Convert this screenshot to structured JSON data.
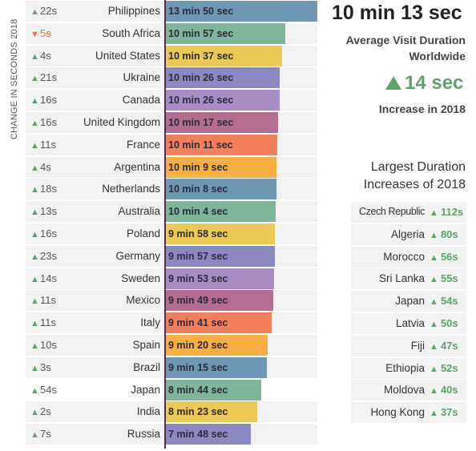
{
  "headline": {
    "value": "10 min 13 sec",
    "label_line1": "Average Visit Duration",
    "label_line2": "Worldwide",
    "increase_value": "14 sec",
    "increase_label": "Increase in 2018"
  },
  "largest_title_line1": "Largest Duration",
  "largest_title_line2": "Increases of 2018",
  "colors": {
    "up": "#5da368",
    "down": "#ee6e4e",
    "axis": "#5a2a4a",
    "palette": [
      "#6e97b4",
      "#7fb598",
      "#eac955",
      "#8b89c1",
      "#a98cc6",
      "#b46d90",
      "#f47f5b",
      "#f8ae43"
    ]
  },
  "chart_data": {
    "type": "bar",
    "orientation": "horizontal",
    "side_label": "CHANGE IN SECONDS 2018",
    "xlim_seconds": [
      0,
      830
    ],
    "rows": [
      {
        "country": "Philippines",
        "change": "22s",
        "direction": "up",
        "duration": "13 min 50 sec",
        "seconds": 830
      },
      {
        "country": "South Africa",
        "change": "5s",
        "direction": "down",
        "duration": "10 min 57 sec",
        "seconds": 657
      },
      {
        "country": "United States",
        "change": "4s",
        "direction": "up",
        "duration": "10 min 37 sec",
        "seconds": 637
      },
      {
        "country": "Ukraine",
        "change": "21s",
        "direction": "up",
        "duration": "10 min 26 sec",
        "seconds": 626
      },
      {
        "country": "Canada",
        "change": "16s",
        "direction": "up",
        "duration": "10 min 26 sec",
        "seconds": 626
      },
      {
        "country": "United Kingdom",
        "change": "16s",
        "direction": "up",
        "duration": "10 min 17 sec",
        "seconds": 617
      },
      {
        "country": "France",
        "change": "11s",
        "direction": "up",
        "duration": "10 min 11 sec",
        "seconds": 611
      },
      {
        "country": "Argentina",
        "change": "4s",
        "direction": "up",
        "duration": "10 min 9 sec",
        "seconds": 609
      },
      {
        "country": "Netherlands",
        "change": "18s",
        "direction": "up",
        "duration": "10 min 8 sec",
        "seconds": 608
      },
      {
        "country": "Australia",
        "change": "13s",
        "direction": "up",
        "duration": "10 min 4 sec",
        "seconds": 604
      },
      {
        "country": "Poland",
        "change": "16s",
        "direction": "up",
        "duration": "9 min 58 sec",
        "seconds": 598
      },
      {
        "country": "Germany",
        "change": "23s",
        "direction": "up",
        "duration": "9 min 57 sec",
        "seconds": 597
      },
      {
        "country": "Sweden",
        "change": "14s",
        "direction": "up",
        "duration": "9 min 53 sec",
        "seconds": 593
      },
      {
        "country": "Mexico",
        "change": "11s",
        "direction": "up",
        "duration": "9 min 49 sec",
        "seconds": 589
      },
      {
        "country": "Italy",
        "change": "11s",
        "direction": "up",
        "duration": "9 min 41 sec",
        "seconds": 581
      },
      {
        "country": "Spain",
        "change": "10s",
        "direction": "up",
        "duration": "9 min 20 sec",
        "seconds": 560
      },
      {
        "country": "Brazil",
        "change": "3s",
        "direction": "up",
        "duration": "9 min 15 sec",
        "seconds": 555
      },
      {
        "country": "Japan",
        "change": "54s",
        "direction": "up",
        "duration": "8 min 44 sec",
        "seconds": 524
      },
      {
        "country": "India",
        "change": "2s",
        "direction": "up",
        "duration": "8 min 23 sec",
        "seconds": 503
      },
      {
        "country": "Russia",
        "change": "7s",
        "direction": "up",
        "duration": "7 min 48 sec",
        "seconds": 468
      }
    ],
    "largest_increases": [
      {
        "country": "Czech Republic",
        "change": "112s"
      },
      {
        "country": "Algeria",
        "change": "80s"
      },
      {
        "country": "Morocco",
        "change": "56s"
      },
      {
        "country": "Sri Lanka",
        "change": "55s"
      },
      {
        "country": "Japan",
        "change": "54s"
      },
      {
        "country": "Latvia",
        "change": "50s"
      },
      {
        "country": "Fiji",
        "change": "47s"
      },
      {
        "country": "Ethiopia",
        "change": "52s"
      },
      {
        "country": "Moldova",
        "change": "40s"
      },
      {
        "country": "Hong Kong",
        "change": "37s"
      }
    ]
  }
}
